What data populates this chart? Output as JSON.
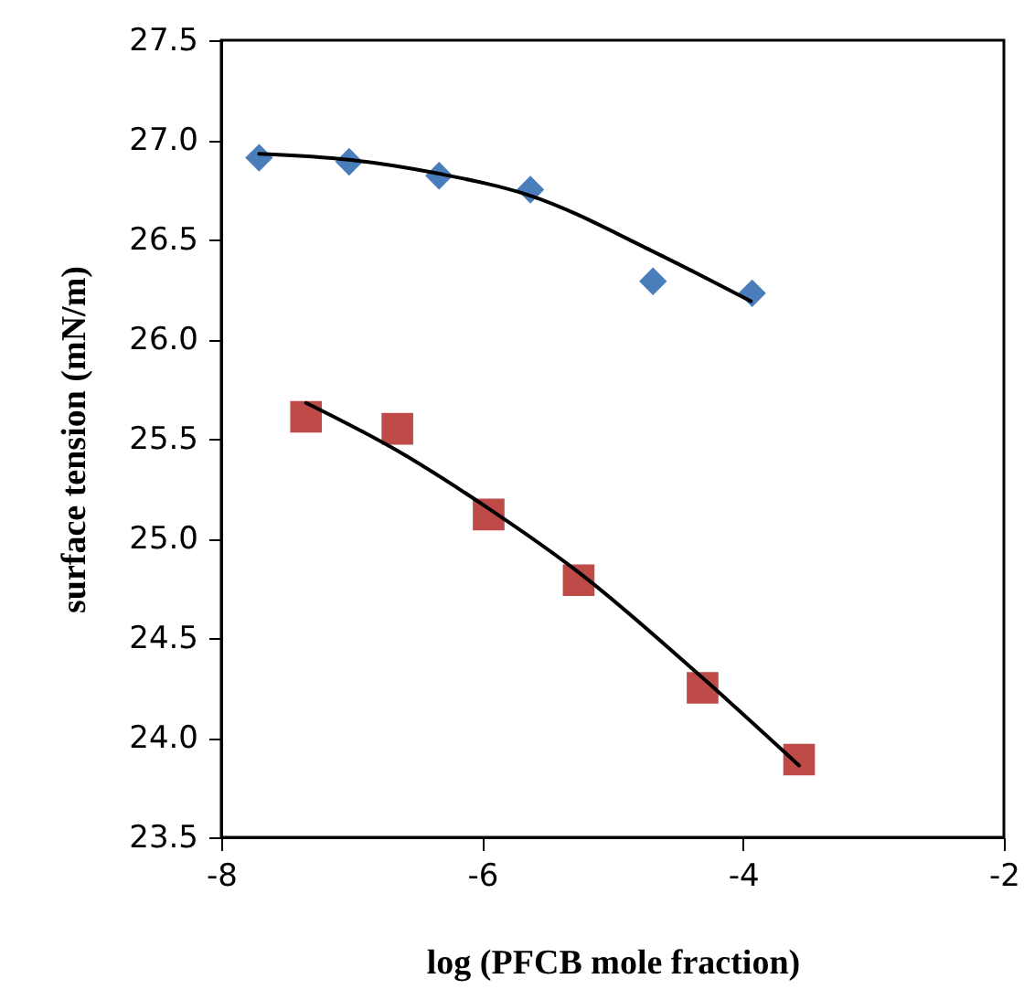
{
  "chart_data": {
    "type": "scatter",
    "xlabel": "log (PFCB mole fraction)",
    "ylabel": "surface tension (mN/m)",
    "xlim": [
      -8,
      -2
    ],
    "xticks": [
      {
        "value": -8,
        "label": "-8"
      },
      {
        "value": -6,
        "label": "-6"
      },
      {
        "value": -4,
        "label": "-4"
      },
      {
        "value": -2,
        "label": "-2"
      }
    ],
    "ylim": [
      23.5,
      27.5
    ],
    "yticks": [
      23.5,
      {
        "value": 24,
        "label": "24.0"
      },
      24.5,
      {
        "value": 25,
        "label": "25.0"
      },
      25.5,
      {
        "value": 26,
        "label": "26.0"
      },
      26.5,
      {
        "value": 27,
        "label": "27.0"
      },
      27.5
    ],
    "grid": false,
    "series": [
      {
        "marker": "diamond",
        "color": "#4a7ebb",
        "x": [
          -7.71,
          -7.02,
          -6.33,
          -5.63,
          -4.69,
          -3.93
        ],
        "values": [
          26.91,
          26.89,
          26.82,
          26.75,
          26.29,
          26.23
        ]
      },
      {
        "marker": "square",
        "color": "#be4b48",
        "x": [
          -7.35,
          -6.65,
          -5.95,
          -5.26,
          -4.31,
          -3.57
        ],
        "values": [
          25.61,
          25.55,
          25.12,
          24.79,
          24.25,
          23.89
        ]
      },
      {
        "type": "line",
        "marker": "none",
        "line_style": "solid",
        "color": "#000000",
        "x": [
          -7.71,
          -7.02,
          -6.33,
          -5.63,
          -4.69,
          -3.94
        ],
        "values": [
          26.93,
          26.9,
          26.83,
          26.72,
          26.44,
          26.19
        ]
      },
      {
        "type": "line",
        "marker": "none",
        "line_style": "solid",
        "color": "#000000",
        "x": [
          -7.35,
          -6.65,
          -5.95,
          -5.26,
          -4.31,
          -3.57
        ],
        "values": [
          25.68,
          25.44,
          25.15,
          24.83,
          24.3,
          23.86
        ]
      }
    ]
  }
}
